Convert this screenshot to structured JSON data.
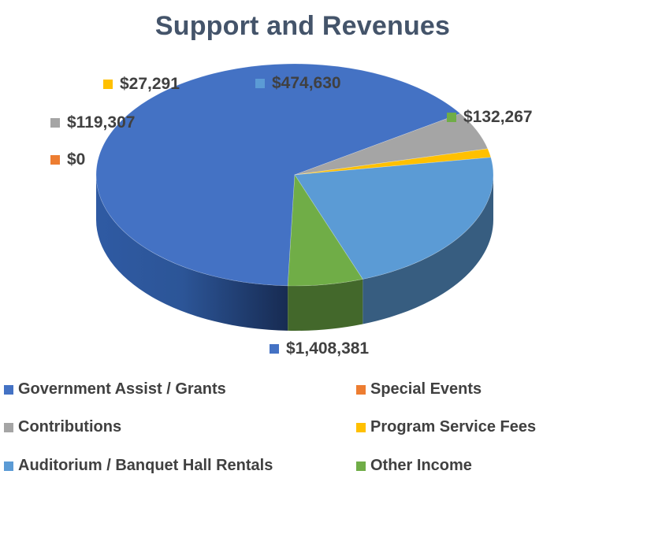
{
  "chart_data": {
    "type": "pie",
    "title": "Support and Revenues",
    "style": "3d",
    "legend_position": "bottom",
    "slices": [
      {
        "name": "Government Assist / Grants",
        "value": 1408381,
        "label": "$1,408,381",
        "color": "#4472c4"
      },
      {
        "name": "Special Events",
        "value": 0,
        "label": "$0",
        "color": "#ed7d31"
      },
      {
        "name": "Contributions",
        "value": 119307,
        "label": "$119,307",
        "color": "#a5a5a5"
      },
      {
        "name": "Program Service Fees",
        "value": 27291,
        "label": "$27,291",
        "color": "#ffc000"
      },
      {
        "name": "Auditorium / Banquet Hall Rentals",
        "value": 474630,
        "label": "$474,630",
        "color": "#5b9bd5"
      },
      {
        "name": "Other Income",
        "value": 132267,
        "label": "$132,267",
        "color": "#70ad47"
      }
    ]
  }
}
